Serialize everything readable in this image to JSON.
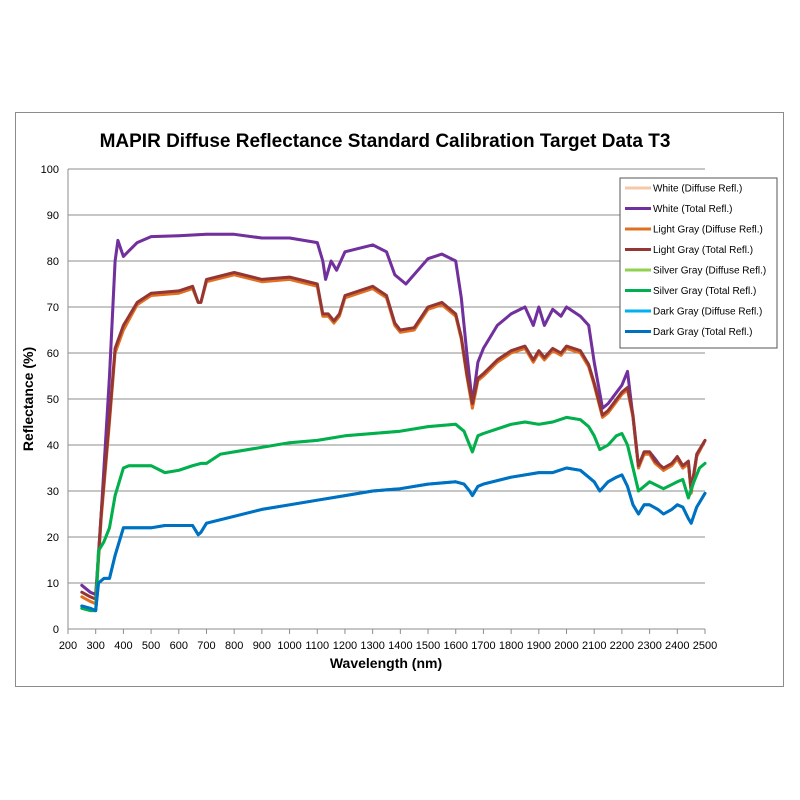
{
  "chart_data": {
    "type": "line",
    "title": "MAPIR Diffuse Reflectance Standard Calibration Target Data T3",
    "xlabel": "Wavelength (nm)",
    "ylabel": "Reflectance (%)",
    "xlim": [
      200,
      2500
    ],
    "ylim": [
      0,
      100
    ],
    "xticks": [
      200,
      300,
      400,
      500,
      600,
      700,
      800,
      900,
      1000,
      1100,
      1200,
      1300,
      1400,
      1500,
      1600,
      1700,
      1800,
      1900,
      2000,
      2100,
      2200,
      2300,
      2400,
      2500
    ],
    "yticks": [
      0,
      10,
      20,
      30,
      40,
      50,
      60,
      70,
      80,
      90,
      100
    ],
    "grid": "horizontal",
    "legend_position": "top-right",
    "series": [
      {
        "name": "White (Diffuse Refl.)",
        "color": "#f5c9a8",
        "x": [
          250,
          280,
          300,
          320,
          350,
          370,
          380,
          400,
          450,
          500,
          600,
          700,
          800,
          900,
          1000,
          1100,
          1120,
          1130,
          1150,
          1170,
          1200,
          1300,
          1350,
          1380,
          1400,
          1420,
          1500,
          1550,
          1600,
          1620,
          1640,
          1660,
          1680,
          1700,
          1750,
          1800,
          1850,
          1880,
          1900,
          1920,
          1950,
          1980,
          2000,
          2050,
          2080,
          2100,
          2130,
          2150,
          2200,
          2220,
          2240,
          2260,
          2280,
          2300,
          2320,
          2350,
          2380,
          2400,
          2420,
          2440,
          2450,
          2470,
          2500
        ],
        "y": [
          9.5,
          8,
          7.5,
          25,
          55,
          80,
          84,
          81,
          84,
          85.3,
          85.5,
          85.8,
          85.8,
          85,
          85,
          84,
          80,
          76,
          80,
          78,
          82,
          83.5,
          82,
          77,
          76,
          75,
          80.5,
          81.5,
          80,
          72,
          60,
          49,
          58,
          61,
          66,
          68.5,
          70,
          66,
          70,
          66,
          69.5,
          68,
          70,
          68,
          66,
          58,
          48,
          49,
          53,
          56,
          46,
          35,
          38.5,
          38.5,
          37,
          34.5,
          36,
          37,
          35,
          36,
          30,
          37.5,
          41
        ]
      },
      {
        "name": "White (Total Refl.)",
        "color": "#7030a0",
        "x": [
          250,
          280,
          300,
          320,
          350,
          370,
          380,
          400,
          450,
          500,
          600,
          700,
          800,
          900,
          1000,
          1100,
          1120,
          1130,
          1150,
          1170,
          1200,
          1300,
          1350,
          1380,
          1400,
          1420,
          1500,
          1550,
          1600,
          1620,
          1640,
          1660,
          1680,
          1700,
          1750,
          1800,
          1850,
          1880,
          1900,
          1920,
          1950,
          1980,
          2000,
          2050,
          2080,
          2100,
          2130,
          2150,
          2200,
          2220,
          2240,
          2260,
          2280,
          2300,
          2320,
          2350,
          2380,
          2400,
          2420,
          2440,
          2450,
          2470,
          2500
        ],
        "y": [
          9.5,
          8,
          7.5,
          25,
          55,
          80,
          84.5,
          81,
          84,
          85.3,
          85.5,
          85.8,
          85.8,
          85,
          85,
          84,
          80,
          76,
          80,
          78,
          82,
          83.5,
          82,
          77,
          76,
          75,
          80.5,
          81.5,
          80,
          72,
          60,
          49,
          58,
          61,
          66,
          68.5,
          70,
          66,
          70,
          66,
          69.5,
          68,
          70,
          68,
          66,
          58,
          48,
          49,
          53,
          56,
          46,
          35,
          38.5,
          38.5,
          37,
          34.5,
          36,
          37,
          35,
          36,
          30,
          37.5,
          41
        ]
      },
      {
        "name": "Light Gray (Diffuse Refl.)",
        "color": "#e07020",
        "x": [
          250,
          280,
          300,
          320,
          350,
          370,
          400,
          450,
          500,
          600,
          650,
          670,
          680,
          700,
          800,
          900,
          1000,
          1100,
          1120,
          1140,
          1160,
          1180,
          1200,
          1300,
          1350,
          1380,
          1400,
          1450,
          1500,
          1550,
          1600,
          1620,
          1640,
          1660,
          1680,
          1700,
          1750,
          1800,
          1850,
          1880,
          1900,
          1920,
          1950,
          1980,
          2000,
          2050,
          2080,
          2100,
          2130,
          2150,
          2200,
          2220,
          2240,
          2260,
          2280,
          2300,
          2320,
          2350,
          2380,
          2400,
          2420,
          2440,
          2450,
          2470,
          2500
        ],
        "y": [
          7,
          6,
          5.5,
          24,
          45,
          60,
          65,
          70.5,
          72.5,
          73,
          74,
          71,
          71,
          75.5,
          77,
          75.5,
          76,
          74.5,
          68,
          68,
          66.5,
          68,
          72,
          74,
          72,
          66,
          64.5,
          65,
          69.5,
          70.5,
          68,
          63,
          55,
          48,
          54,
          55,
          58,
          60,
          61,
          58,
          60,
          58.5,
          60.5,
          59.5,
          61,
          60,
          57,
          53,
          46,
          47,
          51,
          52,
          46,
          35,
          38,
          38,
          36,
          34.5,
          35.5,
          37,
          35,
          36,
          29.5,
          37.5,
          41
        ]
      },
      {
        "name": "Light Gray (Total Refl.)",
        "color": "#943634",
        "x": [
          250,
          280,
          300,
          320,
          350,
          370,
          400,
          450,
          500,
          600,
          650,
          670,
          680,
          700,
          800,
          900,
          1000,
          1100,
          1120,
          1140,
          1160,
          1180,
          1200,
          1300,
          1350,
          1380,
          1400,
          1450,
          1500,
          1550,
          1600,
          1620,
          1640,
          1660,
          1680,
          1700,
          1750,
          1800,
          1850,
          1880,
          1900,
          1920,
          1950,
          1980,
          2000,
          2050,
          2080,
          2100,
          2130,
          2150,
          2200,
          2220,
          2240,
          2260,
          2280,
          2300,
          2320,
          2350,
          2380,
          2400,
          2420,
          2440,
          2450,
          2470,
          2500
        ],
        "y": [
          8,
          7,
          6.5,
          25,
          46,
          61,
          66,
          71,
          73,
          73.5,
          74.5,
          71,
          71,
          76,
          77.5,
          76,
          76.5,
          75,
          68.5,
          68.5,
          67,
          68.5,
          72.5,
          74.5,
          72.5,
          66.5,
          65,
          65.5,
          70,
          71,
          68.5,
          63.5,
          55.5,
          49,
          54.5,
          55.5,
          58.5,
          60.5,
          61.5,
          58.5,
          60.5,
          59,
          61,
          60,
          61.5,
          60.5,
          57.5,
          53.5,
          46.5,
          47.5,
          51.5,
          52.5,
          46.5,
          35.5,
          38.5,
          38.5,
          36.5,
          35,
          36,
          37.5,
          35.5,
          36.5,
          30,
          38,
          41
        ]
      },
      {
        "name": "Silver Gray (Diffuse Refl.)",
        "color": "#92d050",
        "x": [
          250,
          280,
          300,
          310,
          330,
          350,
          370,
          400,
          420,
          450,
          500,
          550,
          600,
          650,
          680,
          700,
          750,
          800,
          900,
          1000,
          1100,
          1200,
          1300,
          1400,
          1500,
          1600,
          1630,
          1650,
          1660,
          1680,
          1700,
          1800,
          1850,
          1900,
          1950,
          2000,
          2050,
          2080,
          2100,
          2120,
          2150,
          2180,
          2200,
          2220,
          2240,
          2260,
          2300,
          2350,
          2400,
          2420,
          2440,
          2460,
          2480,
          2500
        ],
        "y": [
          4.5,
          4,
          4,
          17,
          19,
          22,
          29,
          35,
          35.5,
          35.5,
          35.5,
          34,
          34.5,
          35.5,
          36,
          36,
          38,
          38.5,
          39.5,
          40.5,
          41,
          42,
          42.5,
          43,
          44,
          44.5,
          43,
          40,
          38.5,
          42,
          42.5,
          44.5,
          45,
          44.5,
          45,
          46,
          45.5,
          44,
          42,
          39,
          40,
          42,
          42.5,
          40,
          35,
          30,
          32,
          30.5,
          32,
          32.5,
          28.5,
          32,
          35,
          36
        ]
      },
      {
        "name": "Silver Gray (Total Refl.)",
        "color": "#00b050",
        "x": [
          250,
          280,
          300,
          310,
          330,
          350,
          370,
          400,
          420,
          450,
          500,
          550,
          600,
          650,
          680,
          700,
          750,
          800,
          900,
          1000,
          1100,
          1200,
          1300,
          1400,
          1500,
          1600,
          1630,
          1650,
          1660,
          1680,
          1700,
          1800,
          1850,
          1900,
          1950,
          2000,
          2050,
          2080,
          2100,
          2120,
          2150,
          2180,
          2200,
          2220,
          2240,
          2260,
          2300,
          2350,
          2400,
          2420,
          2440,
          2460,
          2480,
          2500
        ],
        "y": [
          4.5,
          4,
          4,
          17,
          19,
          22,
          29,
          35,
          35.5,
          35.5,
          35.5,
          34,
          34.5,
          35.5,
          36,
          36,
          38,
          38.5,
          39.5,
          40.5,
          41,
          42,
          42.5,
          43,
          44,
          44.5,
          43,
          40,
          38.5,
          42,
          42.5,
          44.5,
          45,
          44.5,
          45,
          46,
          45.5,
          44,
          42,
          39,
          40,
          42,
          42.5,
          40,
          35,
          30,
          32,
          30.5,
          32,
          32.5,
          28.5,
          32,
          35,
          36
        ]
      },
      {
        "name": "Dark Gray (Diffuse Refl.)",
        "color": "#00b0f0",
        "x": [
          250,
          280,
          300,
          310,
          330,
          350,
          370,
          400,
          420,
          450,
          500,
          550,
          600,
          650,
          670,
          680,
          700,
          800,
          900,
          1000,
          1100,
          1200,
          1300,
          1400,
          1500,
          1600,
          1630,
          1650,
          1660,
          1680,
          1700,
          1800,
          1900,
          1950,
          2000,
          2050,
          2080,
          2100,
          2120,
          2150,
          2180,
          2200,
          2220,
          2240,
          2260,
          2280,
          2300,
          2330,
          2350,
          2380,
          2400,
          2420,
          2440,
          2450,
          2470,
          2500
        ],
        "y": [
          5,
          4.5,
          4,
          10,
          11,
          11,
          16,
          22,
          22,
          22,
          22,
          22.5,
          22.5,
          22.5,
          20.5,
          21,
          23,
          24.5,
          26,
          27,
          28,
          29,
          30,
          30.5,
          31.5,
          32,
          31.5,
          30,
          29,
          31,
          31.5,
          33,
          34,
          34,
          35,
          34.5,
          33,
          32,
          30,
          32,
          33,
          33.5,
          31,
          27,
          25,
          27,
          27,
          26,
          25,
          26,
          27,
          26.5,
          24,
          23,
          26.5,
          29.5
        ]
      },
      {
        "name": "Dark Gray (Total Refl.)",
        "color": "#0070c0",
        "x": [
          250,
          280,
          300,
          310,
          330,
          350,
          370,
          400,
          420,
          450,
          500,
          550,
          600,
          650,
          670,
          680,
          700,
          800,
          900,
          1000,
          1100,
          1200,
          1300,
          1400,
          1500,
          1600,
          1630,
          1650,
          1660,
          1680,
          1700,
          1800,
          1900,
          1950,
          2000,
          2050,
          2080,
          2100,
          2120,
          2150,
          2180,
          2200,
          2220,
          2240,
          2260,
          2280,
          2300,
          2330,
          2350,
          2380,
          2400,
          2420,
          2440,
          2450,
          2470,
          2500
        ],
        "y": [
          5,
          4.5,
          4,
          10,
          11,
          11,
          16,
          22,
          22,
          22,
          22,
          22.5,
          22.5,
          22.5,
          20.5,
          21,
          23,
          24.5,
          26,
          27,
          28,
          29,
          30,
          30.5,
          31.5,
          32,
          31.5,
          30,
          29,
          31,
          31.5,
          33,
          34,
          34,
          35,
          34.5,
          33,
          32,
          30,
          32,
          33,
          33.5,
          31,
          27,
          25,
          27,
          27,
          26,
          25,
          26,
          27,
          26.5,
          24,
          23,
          26.5,
          29.5
        ]
      }
    ]
  }
}
